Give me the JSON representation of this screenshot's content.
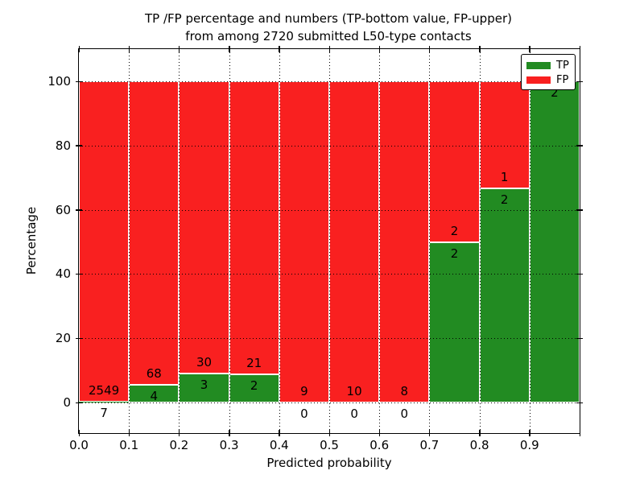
{
  "title": {
    "line1": "TP /FP percentage and numbers (TP-bottom value, FP-upper)",
    "line2": "from among 2720 submitted L50-type contacts"
  },
  "axes": {
    "xlabel": "Predicted probability",
    "ylabel": "Percentage",
    "x_ticks": [
      "0.0",
      "0.1",
      "0.2",
      "0.3",
      "0.4",
      "0.5",
      "0.6",
      "0.7",
      "0.8",
      "0.9"
    ],
    "y_ticks": [
      "0",
      "20",
      "40",
      "60",
      "80",
      "100"
    ],
    "y_tick_values": [
      0,
      20,
      40,
      60,
      80,
      100
    ]
  },
  "legend": [
    {
      "label": "TP",
      "color": "#228b22"
    },
    {
      "label": "FP",
      "color": "#f92020"
    }
  ],
  "colors": {
    "tp": "#228b22",
    "fp": "#f92020",
    "grid": "#000000"
  },
  "chart_data": {
    "type": "bar",
    "stacked": true,
    "normalized": "each bin scaled to 100%",
    "title": "TP /FP percentage and numbers (TP-bottom value, FP-upper) from among 2720 submitted L50-type contacts",
    "xlabel": "Predicted probability",
    "ylabel": "Percentage",
    "bin_edges": [
      0.0,
      0.1,
      0.2,
      0.3,
      0.4,
      0.5,
      0.6,
      0.7,
      0.8,
      0.9,
      1.0
    ],
    "series": [
      {
        "name": "TP",
        "color": "#228b22",
        "counts": [
          7,
          4,
          3,
          2,
          0,
          0,
          0,
          2,
          2,
          2
        ],
        "percent": [
          0.27,
          5.56,
          9.09,
          8.7,
          0,
          0,
          0,
          50.0,
          66.67,
          100.0
        ]
      },
      {
        "name": "FP",
        "color": "#f92020",
        "counts": [
          2549,
          68,
          30,
          21,
          9,
          10,
          8,
          2,
          1,
          0
        ],
        "percent": [
          99.73,
          94.44,
          90.91,
          91.3,
          100,
          100,
          100,
          50.0,
          33.33,
          0
        ]
      }
    ],
    "bar_labels": [
      {
        "fp": "2549",
        "tp": "7"
      },
      {
        "fp": "68",
        "tp": "4"
      },
      {
        "fp": "30",
        "tp": "3"
      },
      {
        "fp": "21",
        "tp": "2"
      },
      {
        "fp": "9",
        "tp": "0"
      },
      {
        "fp": "10",
        "tp": "0"
      },
      {
        "fp": "8",
        "tp": "0"
      },
      {
        "fp": "2",
        "tp": "2"
      },
      {
        "fp": "1",
        "tp": "2"
      },
      {
        "fp": "",
        "tp": "2"
      }
    ],
    "total_contacts": 2720,
    "xlim": [
      0.0,
      1.0
    ],
    "ylim": [
      -10,
      110
    ],
    "grid": "dotted",
    "legend_position": "upper right"
  }
}
